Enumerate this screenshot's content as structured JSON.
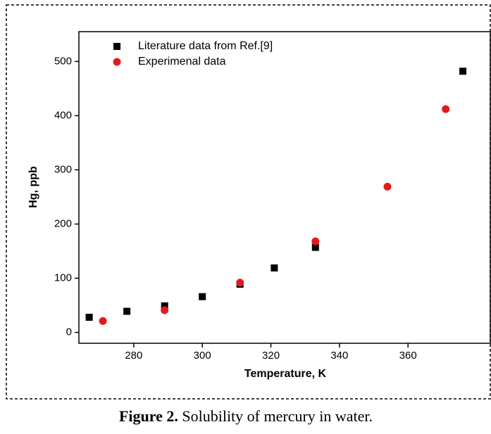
{
  "chart_data": {
    "type": "scatter",
    "xlabel": "Temperature, K",
    "ylabel": "Hg, ppb",
    "caption_label": "Figure 2.",
    "caption_text": "Solubility of mercury in water.",
    "xlim": [
      264,
      384
    ],
    "xticks": [
      280,
      300,
      320,
      340,
      360
    ],
    "ylim": [
      -20,
      555
    ],
    "yticks": [
      0,
      100,
      200,
      300,
      400,
      500
    ],
    "legend": "upper left",
    "series": [
      {
        "name": "Literature data from Ref.[9]",
        "color": "#000000",
        "marker": "square",
        "x": [
          267,
          278,
          289,
          300,
          311,
          321,
          333,
          376
        ],
        "values": [
          28,
          39,
          49,
          66,
          89,
          119,
          157,
          482
        ]
      },
      {
        "name": "Experimenal data",
        "color": "#e31a1c",
        "marker": "circle",
        "x": [
          271,
          289,
          311,
          333,
          354,
          371
        ],
        "values": [
          21,
          41,
          92,
          168,
          269,
          412
        ]
      }
    ]
  }
}
